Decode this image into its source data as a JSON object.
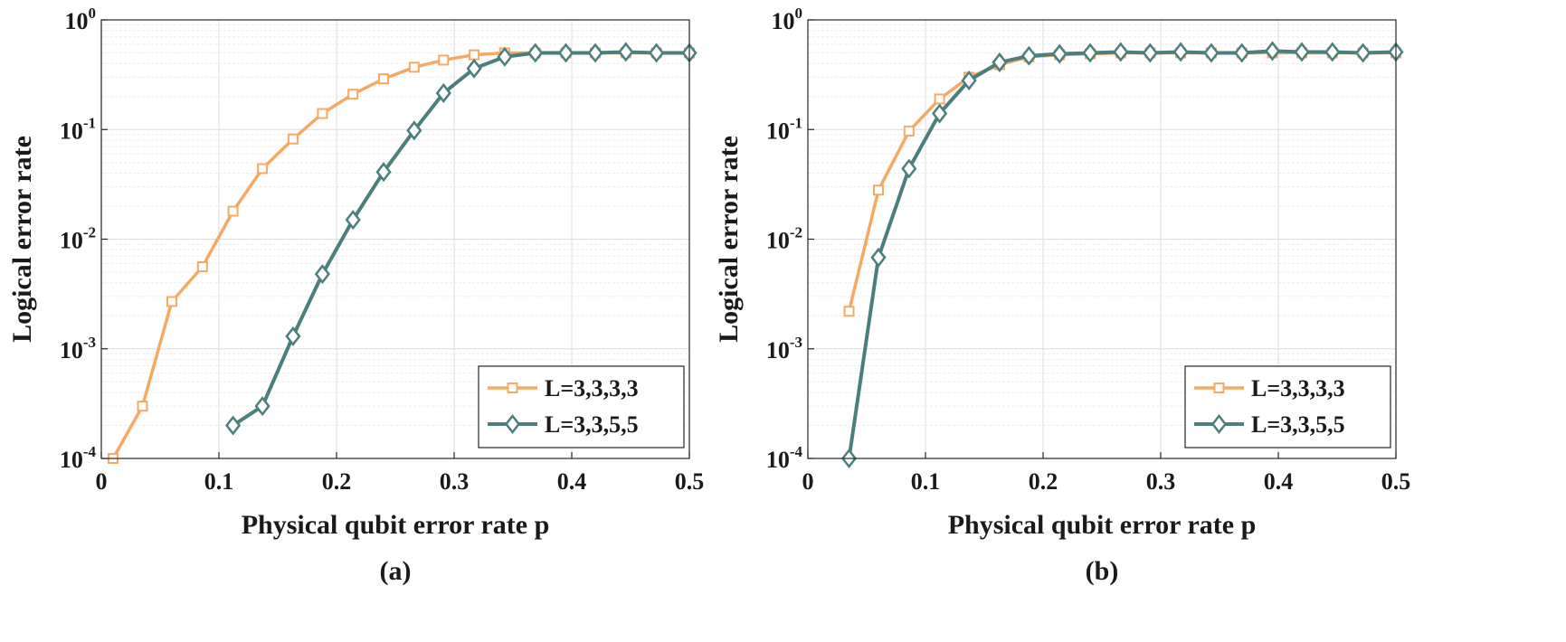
{
  "chart_data": [
    {
      "type": "line",
      "caption": "(a)",
      "xlabel": "Physical qubit error rate p",
      "ylabel": "Logical error rate",
      "xlim": [
        0,
        0.5
      ],
      "ylim": [
        0.0001,
        1
      ],
      "yscale": "log",
      "grid": true,
      "legend_loc": "bottom-right",
      "xticks": [
        0,
        0.1,
        0.2,
        0.3,
        0.4,
        0.5
      ],
      "xtick_labels": [
        "0",
        "0.1",
        "0.2",
        "0.3",
        "0.4",
        "0.5"
      ],
      "yticks": [
        {
          "value": 0.0001,
          "base": "10",
          "exp": "-4"
        },
        {
          "value": 0.001,
          "base": "10",
          "exp": "-3"
        },
        {
          "value": 0.01,
          "base": "10",
          "exp": "-2"
        },
        {
          "value": 0.1,
          "base": "10",
          "exp": "-1"
        },
        {
          "value": 1,
          "base": "10",
          "exp": "0"
        }
      ],
      "series": [
        {
          "name": "L=3,3,3,3",
          "color": "#F5A962",
          "marker": "square",
          "x": [
            0.01,
            0.035,
            0.06,
            0.086,
            0.112,
            0.137,
            0.163,
            0.188,
            0.214,
            0.24,
            0.266,
            0.291,
            0.317,
            0.343,
            0.369,
            0.395,
            0.42,
            0.446,
            0.472,
            0.5
          ],
          "y": [
            0.0001,
            0.0003,
            0.0027,
            0.0056,
            0.018,
            0.044,
            0.082,
            0.14,
            0.21,
            0.29,
            0.37,
            0.43,
            0.48,
            0.5,
            0.5,
            0.5,
            0.5,
            0.5,
            0.5,
            0.5
          ]
        },
        {
          "name": "L=3,3,5,5",
          "color": "#4A7F7D",
          "marker": "diamond",
          "x": [
            0.112,
            0.137,
            0.163,
            0.188,
            0.214,
            0.24,
            0.266,
            0.291,
            0.317,
            0.343,
            0.369,
            0.395,
            0.42,
            0.446,
            0.472,
            0.5
          ],
          "y": [
            0.0002,
            0.0003,
            0.0013,
            0.0048,
            0.015,
            0.041,
            0.098,
            0.215,
            0.36,
            0.46,
            0.5,
            0.5,
            0.5,
            0.51,
            0.5,
            0.5
          ]
        }
      ]
    },
    {
      "type": "line",
      "caption": "(b)",
      "xlabel": "Physical qubit error rate p",
      "ylabel": "Logical error rate",
      "xlim": [
        0,
        0.5
      ],
      "ylim": [
        0.0001,
        1
      ],
      "yscale": "log",
      "grid": true,
      "legend_loc": "bottom-right",
      "xticks": [
        0,
        0.1,
        0.2,
        0.3,
        0.4,
        0.5
      ],
      "xtick_labels": [
        "0",
        "0.1",
        "0.2",
        "0.3",
        "0.4",
        "0.5"
      ],
      "yticks": [
        {
          "value": 0.0001,
          "base": "10",
          "exp": "-4"
        },
        {
          "value": 0.001,
          "base": "10",
          "exp": "-3"
        },
        {
          "value": 0.01,
          "base": "10",
          "exp": "-2"
        },
        {
          "value": 0.1,
          "base": "10",
          "exp": "-1"
        },
        {
          "value": 1,
          "base": "10",
          "exp": "0"
        }
      ],
      "series": [
        {
          "name": "L=3,3,3,3",
          "color": "#F5A962",
          "marker": "square",
          "x": [
            0.035,
            0.06,
            0.086,
            0.112,
            0.137,
            0.163,
            0.188,
            0.214,
            0.24,
            0.266,
            0.291,
            0.317,
            0.343,
            0.369,
            0.395,
            0.42,
            0.446,
            0.472,
            0.5
          ],
          "y": [
            0.0022,
            0.028,
            0.097,
            0.19,
            0.3,
            0.39,
            0.46,
            0.48,
            0.49,
            0.5,
            0.5,
            0.5,
            0.5,
            0.5,
            0.5,
            0.5,
            0.5,
            0.5,
            0.5
          ]
        },
        {
          "name": "L=3,3,5,5",
          "color": "#4A7F7D",
          "marker": "diamond",
          "x": [
            0.035,
            0.06,
            0.086,
            0.112,
            0.137,
            0.163,
            0.188,
            0.214,
            0.24,
            0.266,
            0.291,
            0.317,
            0.343,
            0.369,
            0.395,
            0.42,
            0.446,
            0.472,
            0.5
          ],
          "y": [
            0.0001,
            0.0068,
            0.044,
            0.14,
            0.28,
            0.41,
            0.47,
            0.49,
            0.5,
            0.51,
            0.5,
            0.51,
            0.5,
            0.5,
            0.52,
            0.51,
            0.51,
            0.5,
            0.51
          ]
        }
      ]
    }
  ]
}
